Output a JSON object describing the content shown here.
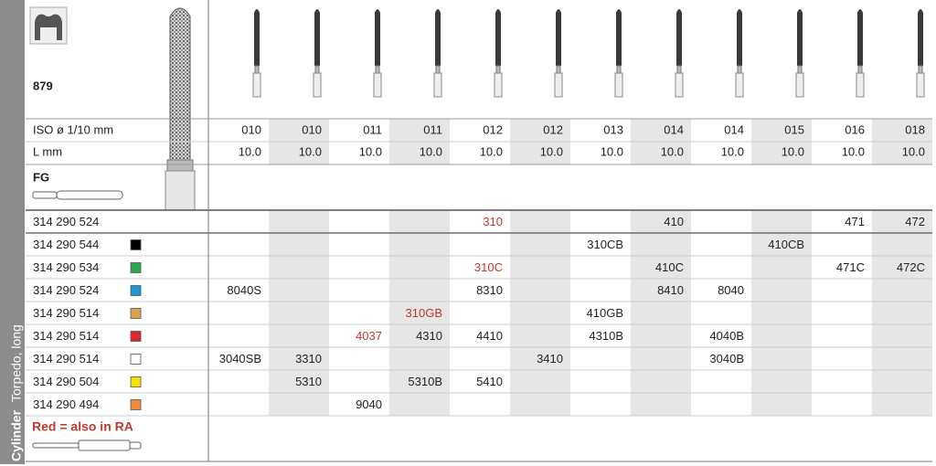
{
  "sidebar": {
    "shape": "Cylinder",
    "variant": "Torpedo, long"
  },
  "figure": "879",
  "labels": {
    "iso": "ISO ø 1/10 mm",
    "length": "L mm",
    "shank": "FG"
  },
  "iso": [
    "010",
    "010",
    "011",
    "011",
    "012",
    "012",
    "013",
    "014",
    "014",
    "015",
    "016",
    "018"
  ],
  "length": [
    "10.0",
    "10.0",
    "10.0",
    "10.0",
    "10.0",
    "10.0",
    "10.0",
    "10.0",
    "10.0",
    "10.0",
    "10.0",
    "10.0"
  ],
  "highlight_color": "#c0392b",
  "rows": [
    {
      "ref": "314 290 524",
      "swatch": null,
      "cells": [
        null,
        null,
        null,
        null,
        "310",
        null,
        null,
        "410",
        null,
        null,
        "471",
        "472"
      ],
      "red": [
        4
      ]
    },
    {
      "ref": "314 290 544",
      "swatch": "#000000",
      "cells": [
        null,
        null,
        null,
        null,
        null,
        null,
        "310CB",
        null,
        null,
        "410CB",
        null,
        null
      ],
      "red": []
    },
    {
      "ref": "314 290 534",
      "swatch": "#2ea84a",
      "cells": [
        null,
        null,
        null,
        null,
        "310C",
        null,
        null,
        "410C",
        null,
        null,
        "471C",
        "472C"
      ],
      "red": [
        4
      ]
    },
    {
      "ref": "314 290 524",
      "swatch": "#1e96d4",
      "cells": [
        "8040S",
        null,
        null,
        null,
        "8310",
        null,
        null,
        "8410",
        "8040",
        null,
        null,
        null
      ],
      "red": []
    },
    {
      "ref": "314 290 514",
      "swatch": "#d9a24e",
      "cells": [
        null,
        null,
        null,
        "310GB",
        null,
        null,
        "410GB",
        null,
        null,
        null,
        null,
        null
      ],
      "red": [
        3
      ]
    },
    {
      "ref": "314 290 514",
      "swatch": "#e0262a",
      "cells": [
        null,
        null,
        "4037",
        "4310",
        "4410",
        null,
        "4310B",
        null,
        "4040B",
        null,
        null,
        null
      ],
      "red": [
        2
      ]
    },
    {
      "ref": "314 290 514",
      "swatch": "#ffffff",
      "cells": [
        "3040SB",
        "3310",
        null,
        null,
        null,
        "3410",
        null,
        null,
        "3040B",
        null,
        null,
        null
      ],
      "red": []
    },
    {
      "ref": "314 290 504",
      "swatch": "#f5e400",
      "cells": [
        null,
        "5310",
        null,
        "5310B",
        "5410",
        null,
        null,
        null,
        null,
        null,
        null,
        null
      ],
      "red": []
    },
    {
      "ref": "314 290 494",
      "swatch": "#f08a3c",
      "cells": [
        null,
        null,
        "9040",
        null,
        null,
        null,
        null,
        null,
        null,
        null,
        null,
        null
      ],
      "red": []
    }
  ],
  "footnote": "Red = also in RA"
}
